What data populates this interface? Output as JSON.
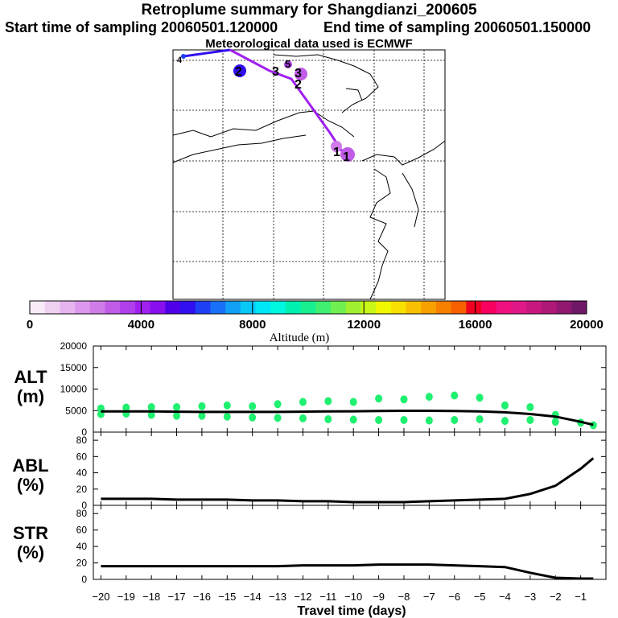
{
  "chart_data": {
    "type": "line",
    "title": "Retroplume summary for Shangdianzi_200605",
    "subtitle_start": "Start time of sampling 20060501.120000",
    "subtitle_end": "End time of sampling 20060501.150000",
    "subtitle_met": "Meteorological data used is ECMWF",
    "map_labels": [
      "1",
      "2",
      "3",
      "4",
      "5"
    ],
    "colorbar": {
      "label": "Altitude (m)",
      "ticks": [
        0,
        4000,
        8000,
        12000,
        16000,
        20000
      ],
      "tick_labels": [
        "0",
        "4000",
        "8000",
        "12000",
        "16000",
        "20000"
      ],
      "colors": [
        "#f8ecf8",
        "#f0d0f0",
        "#e8b4f0",
        "#dc98ec",
        "#d07ce8",
        "#c05ce8",
        "#b040ec",
        "#a020f0",
        "#8810f0",
        "#5000e8",
        "#3010f0",
        "#2040f8",
        "#1870f8",
        "#10a0f8",
        "#08c8f8",
        "#00e8f8",
        "#00f8e0",
        "#00f0b0",
        "#18f090",
        "#40f070",
        "#70f050",
        "#a0f030",
        "#c8f818",
        "#f0f800",
        "#f8e000",
        "#f8c000",
        "#f8a000",
        "#f88000",
        "#f86000",
        "#f00020",
        "#f80060",
        "#f01080",
        "#e01888",
        "#c81880",
        "#b01878",
        "#901870",
        "#701868"
      ]
    },
    "series": [
      {
        "name": "ALT (m)",
        "ylim": [
          0,
          20000
        ],
        "yticks": [
          0,
          5000,
          10000,
          15000,
          20000
        ],
        "ytick_labels": [
          "0",
          "5000",
          "10000",
          "15000",
          "20000"
        ],
        "x": [
          -20,
          -19,
          -18,
          -17,
          -16,
          -15,
          -14,
          -13,
          -12,
          -11,
          -10,
          -9,
          -8,
          -7,
          -6,
          -5,
          -4,
          -3,
          -2,
          -1,
          -0.5
        ],
        "values": [
          4800,
          4800,
          4800,
          4750,
          4700,
          4700,
          4700,
          4700,
          4750,
          4800,
          4850,
          4900,
          4950,
          4950,
          4900,
          4800,
          4600,
          4200,
          3600,
          2400,
          1700
        ],
        "scatter": {
          "x": [
            -20,
            -20,
            -19,
            -19,
            -18,
            -18,
            -17,
            -17,
            -16,
            -16,
            -15,
            -15,
            -14,
            -14,
            -13,
            -13,
            -12,
            -12,
            -11,
            -11,
            -10,
            -10,
            -9,
            -9,
            -8,
            -8,
            -7,
            -7,
            -6,
            -6,
            -5,
            -5,
            -4,
            -4,
            -3,
            -3,
            -2,
            -2,
            -1,
            -0.5
          ],
          "y": [
            5500,
            4200,
            5700,
            4300,
            5800,
            4000,
            5800,
            3800,
            6000,
            3800,
            6200,
            3600,
            6000,
            3400,
            6500,
            3300,
            7000,
            3200,
            7200,
            3000,
            7000,
            2900,
            7800,
            2800,
            7600,
            2800,
            8200,
            2700,
            8500,
            2800,
            8000,
            3000,
            6200,
            2600,
            5800,
            2800,
            4000,
            2400,
            2200,
            1600
          ]
        }
      },
      {
        "name": "ABL (%)",
        "ylim": [
          0,
          90
        ],
        "yticks": [
          0,
          20,
          40,
          60,
          80
        ],
        "ytick_labels": [
          "0",
          "20",
          "40",
          "60",
          "80"
        ],
        "x": [
          -20,
          -19,
          -18,
          -17,
          -16,
          -15,
          -14,
          -13,
          -12,
          -11,
          -10,
          -9,
          -8,
          -7,
          -6,
          -5,
          -4,
          -3,
          -2,
          -1,
          -0.5
        ],
        "values": [
          8,
          8,
          8,
          7,
          7,
          7,
          6,
          6,
          5,
          5,
          4,
          4,
          4,
          5,
          6,
          7,
          8,
          14,
          24,
          45,
          58
        ]
      },
      {
        "name": "STR (%)",
        "ylim": [
          0,
          90
        ],
        "yticks": [
          0,
          20,
          40,
          60,
          80
        ],
        "ytick_labels": [
          "0",
          "20",
          "40",
          "60",
          "80"
        ],
        "x": [
          -20,
          -19,
          -18,
          -17,
          -16,
          -15,
          -14,
          -13,
          -12,
          -11,
          -10,
          -9,
          -8,
          -7,
          -6,
          -5,
          -4,
          -3,
          -2,
          -1,
          -0.5
        ],
        "values": [
          16,
          16,
          16,
          16,
          16,
          16,
          16,
          16,
          17,
          17,
          17,
          18,
          18,
          18,
          17,
          16,
          15,
          8,
          2,
          1,
          1
        ]
      }
    ],
    "panel_labels": {
      "alt_top": "ALT",
      "alt_bottom": "(m)",
      "abl_top": "ABL",
      "abl_bottom": "(%)",
      "str_top": "STR",
      "str_bottom": "(%)"
    },
    "xticks": [
      -20,
      -19,
      -18,
      -17,
      -16,
      -15,
      -14,
      -13,
      -12,
      -11,
      -10,
      -9,
      -8,
      -7,
      -6,
      -5,
      -4,
      -3,
      -2,
      -1
    ],
    "xtick_labels": [
      "−20",
      "−19",
      "−18",
      "−17",
      "−16",
      "−15",
      "−14",
      "−13",
      "−12",
      "−11",
      "−10",
      "−9",
      "−8",
      "−7",
      "−6",
      "−5",
      "−4",
      "−3",
      "−2",
      "−1"
    ],
    "xlim": [
      -20.3,
      0
    ],
    "xlabel": "Travel time (days)"
  }
}
